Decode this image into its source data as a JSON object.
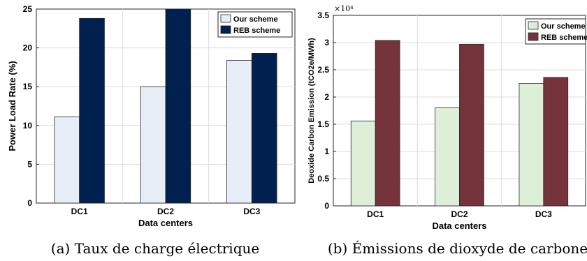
{
  "chart_data": [
    {
      "type": "bar",
      "categories": [
        "DC1",
        "DC2",
        "DC3"
      ],
      "series": [
        {
          "name": "Our scheme",
          "values": [
            11.1,
            15.0,
            18.4
          ],
          "color": "#e8eef7"
        },
        {
          "name": "REB scheme",
          "values": [
            23.8,
            25.0,
            19.3
          ],
          "color": "#00204f"
        }
      ],
      "xlabel": "Data centers",
      "ylabel": "Power Load Rate (%)",
      "ylim": [
        0,
        25
      ],
      "yticks": [
        "0",
        "5",
        "10",
        "15",
        "20",
        "25"
      ],
      "grid": true,
      "legend": "top-right",
      "caption": "(a) Taux de charge électrique"
    },
    {
      "type": "bar",
      "categories": [
        "DC1",
        "DC2",
        "DC3"
      ],
      "series": [
        {
          "name": "Our scheme",
          "values": [
            15600,
            18000,
            22500
          ],
          "color": "#deefd8"
        },
        {
          "name": "REB scheme",
          "values": [
            30400,
            29700,
            23600
          ],
          "color": "#75343a"
        }
      ],
      "xlabel": "Data centers",
      "ylabel": "Deoxide Carbon Emission (tCO2e/MWh)",
      "ylim": [
        0,
        35000
      ],
      "yticks": [
        "0",
        "0.5",
        "1",
        "1.5",
        "2",
        "2.5",
        "3",
        "3.5"
      ],
      "yexponent": "×10⁴",
      "grid": true,
      "legend": "top-right",
      "caption": "(b) Émissions de dioxyde de carbone"
    }
  ]
}
